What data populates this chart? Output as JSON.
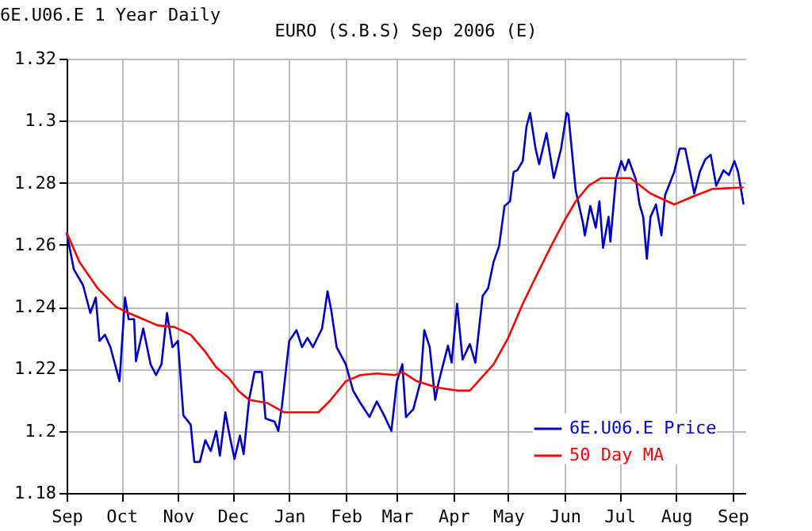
{
  "chart_data": {
    "type": "line",
    "title": "EURO (S.B.S) Sep 2006 (E)",
    "annotations": [
      "6E.U06.E 1 Year Daily"
    ],
    "series": [
      {
        "name": "6E.U06.E Price",
        "color": "#0000cc",
        "x": [
          "2005-09-01",
          "2005-09-05",
          "2005-09-10",
          "2005-09-14",
          "2005-09-17",
          "2005-09-19",
          "2005-09-22",
          "2005-09-25",
          "2005-09-30",
          "2005-10-03",
          "2005-10-05",
          "2005-10-08",
          "2005-10-09",
          "2005-10-13",
          "2005-10-17",
          "2005-10-20",
          "2005-10-23",
          "2005-10-26",
          "2005-10-29",
          "2005-11-01",
          "2005-11-04",
          "2005-11-08",
          "2005-11-10",
          "2005-11-13",
          "2005-11-16",
          "2005-11-19",
          "2005-11-22",
          "2005-11-24",
          "2005-11-27",
          "2005-11-29",
          "2005-12-02",
          "2005-12-05",
          "2005-12-07",
          "2005-12-10",
          "2005-12-13",
          "2005-12-17",
          "2005-12-19",
          "2005-12-24",
          "2005-12-26",
          "2005-12-28",
          "2006-01-01",
          "2006-01-05",
          "2006-01-08",
          "2006-01-11",
          "2006-01-14",
          "2006-01-19",
          "2006-01-22",
          "2006-01-24",
          "2006-01-27",
          "2006-02-01",
          "2006-02-05",
          "2006-02-09",
          "2006-02-14",
          "2006-02-18",
          "2006-02-22",
          "2006-02-26",
          "2006-03-01",
          "2006-03-04",
          "2006-03-06",
          "2006-03-10",
          "2006-03-14",
          "2006-03-16",
          "2006-03-19",
          "2006-03-22",
          "2006-03-24",
          "2006-03-29",
          "2006-03-31",
          "2006-04-03",
          "2006-04-06",
          "2006-04-10",
          "2006-04-13",
          "2006-04-17",
          "2006-04-20",
          "2006-04-23",
          "2006-04-26",
          "2006-04-29",
          "2006-05-02",
          "2006-05-04",
          "2006-05-06",
          "2006-05-09",
          "2006-05-11",
          "2006-05-13",
          "2006-05-16",
          "2006-05-18",
          "2006-05-22",
          "2006-05-26",
          "2006-05-30",
          "2006-06-02",
          "2006-06-03",
          "2006-06-07",
          "2006-06-11",
          "2006-06-12",
          "2006-06-15",
          "2006-06-18",
          "2006-06-20",
          "2006-06-22",
          "2006-06-25",
          "2006-06-26",
          "2006-06-29",
          "2006-07-02",
          "2006-07-04",
          "2006-07-06",
          "2006-07-10",
          "2006-07-12",
          "2006-07-14",
          "2006-07-16",
          "2006-07-18",
          "2006-07-21",
          "2006-07-24",
          "2006-07-26",
          "2006-07-28",
          "2006-07-31",
          "2006-08-03",
          "2006-08-06",
          "2006-08-09",
          "2006-08-11",
          "2006-08-14",
          "2006-08-17",
          "2006-08-20",
          "2006-08-23",
          "2006-08-27",
          "2006-08-30",
          "2006-09-02",
          "2006-09-04",
          "2006-09-07"
        ],
        "values": [
          1.264,
          1.252,
          1.247,
          1.238,
          1.243,
          1.229,
          1.231,
          1.227,
          1.216,
          1.243,
          1.236,
          1.236,
          1.2225,
          1.233,
          1.2215,
          1.218,
          1.2215,
          1.238,
          1.227,
          1.229,
          1.205,
          1.202,
          1.19,
          1.19,
          1.197,
          1.1935,
          1.2,
          1.192,
          1.206,
          1.1995,
          1.191,
          1.1985,
          1.1925,
          1.21,
          1.219,
          1.219,
          1.204,
          1.203,
          1.2,
          1.208,
          1.229,
          1.2325,
          1.227,
          1.23,
          1.227,
          1.233,
          1.245,
          1.239,
          1.227,
          1.2215,
          1.213,
          1.209,
          1.2045,
          1.2095,
          1.205,
          1.2,
          1.216,
          1.2215,
          1.2045,
          1.207,
          1.216,
          1.2325,
          1.227,
          1.21,
          1.216,
          1.2275,
          1.222,
          1.241,
          1.223,
          1.228,
          1.222,
          1.2435,
          1.246,
          1.2545,
          1.2595,
          1.2725,
          1.274,
          1.2835,
          1.284,
          1.287,
          1.298,
          1.3025,
          1.291,
          1.286,
          1.296,
          1.2815,
          1.291,
          1.3025,
          1.302,
          1.2775,
          1.267,
          1.263,
          1.2725,
          1.2655,
          1.274,
          1.259,
          1.269,
          1.261,
          1.281,
          1.287,
          1.284,
          1.2875,
          1.281,
          1.273,
          1.269,
          1.2555,
          1.269,
          1.273,
          1.263,
          1.276,
          1.279,
          1.2835,
          1.291,
          1.291,
          1.2825,
          1.2765,
          1.2835,
          1.2875,
          1.289,
          1.279,
          1.284,
          1.2825,
          1.287,
          1.2835,
          1.273
        ]
      },
      {
        "name": "50 Day MA",
        "color": "#ff0000",
        "x": [
          "2005-09-01",
          "2005-09-08",
          "2005-09-18",
          "2005-09-28",
          "2005-10-05",
          "2005-10-13",
          "2005-10-21",
          "2005-10-30",
          "2005-11-08",
          "2005-11-16",
          "2005-11-22",
          "2005-11-29",
          "2005-12-04",
          "2005-12-10",
          "2005-12-20",
          "2005-12-29",
          "2006-01-08",
          "2006-01-17",
          "2006-01-23",
          "2006-02-01",
          "2006-02-09",
          "2006-02-18",
          "2006-02-28",
          "2006-03-04",
          "2006-03-12",
          "2006-03-23",
          "2006-04-03",
          "2006-04-10",
          "2006-04-23",
          "2006-05-01",
          "2006-05-09",
          "2006-05-16",
          "2006-05-24",
          "2006-06-01",
          "2006-06-07",
          "2006-06-14",
          "2006-06-21",
          "2006-07-07",
          "2006-07-18",
          "2006-07-31",
          "2006-08-10",
          "2006-08-21",
          "2006-09-07"
        ],
        "values": [
          1.264,
          1.2545,
          1.246,
          1.24,
          1.238,
          1.236,
          1.234,
          1.2335,
          1.231,
          1.2255,
          1.2205,
          1.217,
          1.213,
          1.21,
          1.209,
          1.206,
          1.206,
          1.206,
          1.2095,
          1.216,
          1.218,
          1.2185,
          1.218,
          1.219,
          1.216,
          1.214,
          1.213,
          1.213,
          1.2215,
          1.23,
          1.241,
          1.2495,
          1.259,
          1.268,
          1.274,
          1.279,
          1.2815,
          1.2815,
          1.2765,
          1.273,
          1.2755,
          1.278,
          1.2785
        ]
      }
    ],
    "xlim": [
      "2005-09-01",
      "2006-09-08"
    ],
    "xticks": [
      {
        "value": "2005-09-01",
        "label": "Sep"
      },
      {
        "value": "2005-10-01",
        "label": "Oct"
      },
      {
        "value": "2005-11-01",
        "label": "Nov"
      },
      {
        "value": "2005-12-01",
        "label": "Dec"
      },
      {
        "value": "2006-01-01",
        "label": "Jan"
      },
      {
        "value": "2006-02-01",
        "label": "Feb"
      },
      {
        "value": "2006-03-01",
        "label": "Mar"
      },
      {
        "value": "2006-04-01",
        "label": "Apr"
      },
      {
        "value": "2006-05-01",
        "label": "May"
      },
      {
        "value": "2006-06-01",
        "label": "Jun"
      },
      {
        "value": "2006-07-01",
        "label": "Jul"
      },
      {
        "value": "2006-08-01",
        "label": "Aug"
      },
      {
        "value": "2006-09-01",
        "label": "Sep"
      }
    ],
    "ylim": [
      1.18,
      1.32
    ],
    "yticks": [
      1.18,
      1.2,
      1.22,
      1.24,
      1.26,
      1.28,
      1.3,
      1.32
    ],
    "grid": true,
    "legend": "bottom right",
    "marker": "none",
    "line_style": "solid"
  }
}
